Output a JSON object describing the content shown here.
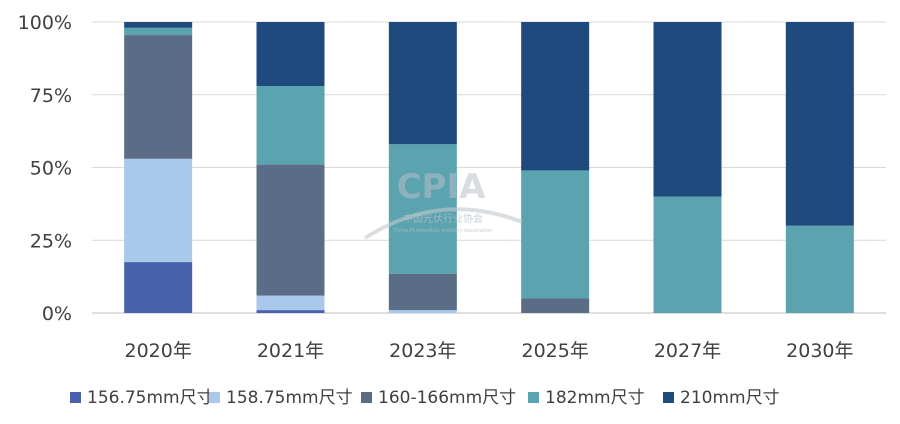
{
  "chart_data": {
    "type": "bar",
    "stacked": true,
    "percent": true,
    "categories": [
      "2020年",
      "2021年",
      "2023年",
      "2025年",
      "2027年",
      "2030年"
    ],
    "y_ticks": [
      "0%",
      "25%",
      "50%",
      "75%",
      "100%"
    ],
    "ylim": [
      0,
      100
    ],
    "grid": true,
    "legend_position": "bottom",
    "series": [
      {
        "name": "156.75mm尺寸",
        "color": "#4a62ad",
        "values": [
          17.5,
          1,
          0,
          0,
          0,
          0
        ]
      },
      {
        "name": "158.75mm尺寸",
        "color": "#a8c8ec",
        "values": [
          35.5,
          5,
          1,
          0,
          0,
          0
        ]
      },
      {
        "name": "160-166mm尺寸",
        "color": "#5a6c86",
        "values": [
          42.5,
          45,
          12.5,
          5,
          0,
          0
        ]
      },
      {
        "name": "182mm尺寸",
        "color": "#5aa3af",
        "values": [
          2.5,
          27,
          44.5,
          44,
          40,
          30
        ]
      },
      {
        "name": "210mm尺寸",
        "color": "#1e4a7e",
        "values": [
          2,
          22,
          42,
          51,
          60,
          70
        ]
      }
    ]
  },
  "watermark": {
    "logo_text": "CPIA",
    "cn_text": "中国光伏行业协会",
    "en_text": "China Photovoltaic Industry Association"
  }
}
